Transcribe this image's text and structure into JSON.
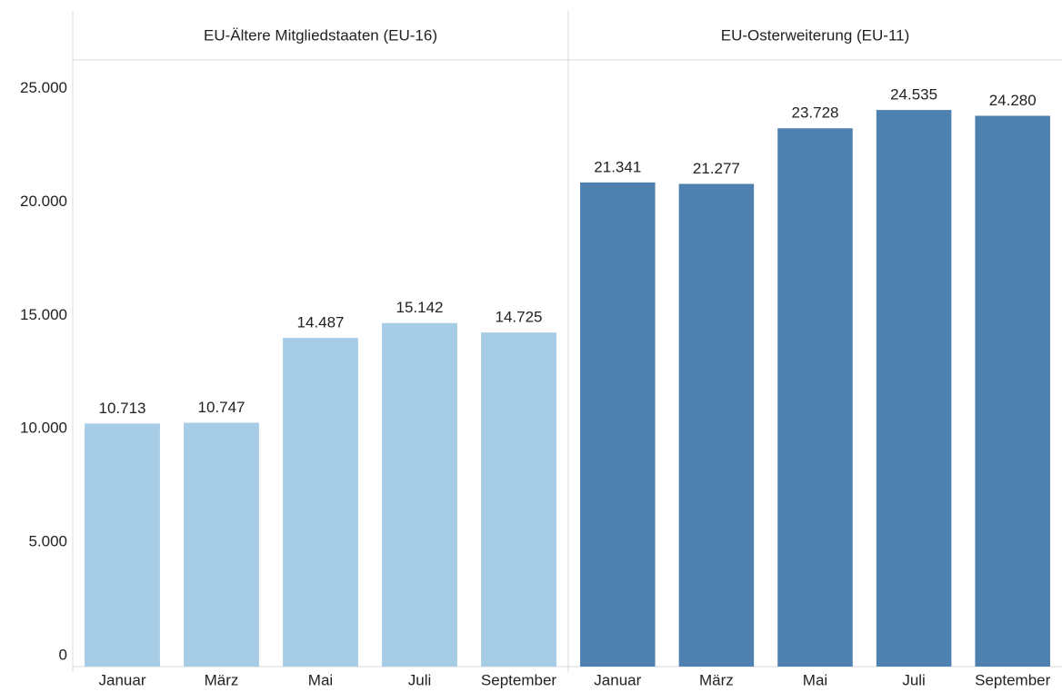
{
  "chart_data": {
    "type": "bar",
    "ylim": [
      0,
      25500
    ],
    "yticks": [
      0,
      {
        "value": 5000,
        "label": "5.000"
      },
      {
        "value": 10000,
        "label": "10.000"
      },
      {
        "value": 15000,
        "label": "15.000"
      },
      {
        "value": 20000,
        "label": "20.000"
      },
      {
        "value": 25000,
        "label": "25.000"
      }
    ],
    "panels": [
      {
        "title": "EU-Ältere Mitgliedstaaten (EU-16)",
        "color": "#a6cce6",
        "categories": [
          "Januar",
          "März",
          "Mai",
          "Juli",
          "September"
        ],
        "values": [
          10713,
          10747,
          14487,
          15142,
          14725
        ],
        "value_labels": [
          "10.713",
          "10.747",
          "14.487",
          "15.142",
          "14.725"
        ]
      },
      {
        "title": "EU-Osterweiterung (EU-11)",
        "color": "#4e81b0",
        "categories": [
          "Januar",
          "März",
          "Mai",
          "Juli",
          "September"
        ],
        "values": [
          21341,
          21277,
          23728,
          24535,
          24280
        ],
        "value_labels": [
          "21.341",
          "21.277",
          "23.728",
          "24.535",
          "24.280"
        ]
      }
    ]
  }
}
